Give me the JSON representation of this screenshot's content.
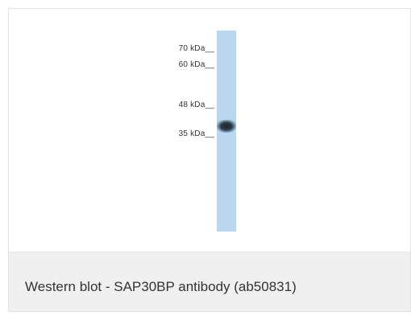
{
  "figure": {
    "markers": [
      {
        "label": "70 kDa__"
      },
      {
        "label": "60 kDa__"
      },
      {
        "label": "48 kDa__"
      },
      {
        "label": "35 kDa__"
      }
    ]
  },
  "caption": {
    "text": "Western blot - SAP30BP antibody (ab50831)"
  }
}
